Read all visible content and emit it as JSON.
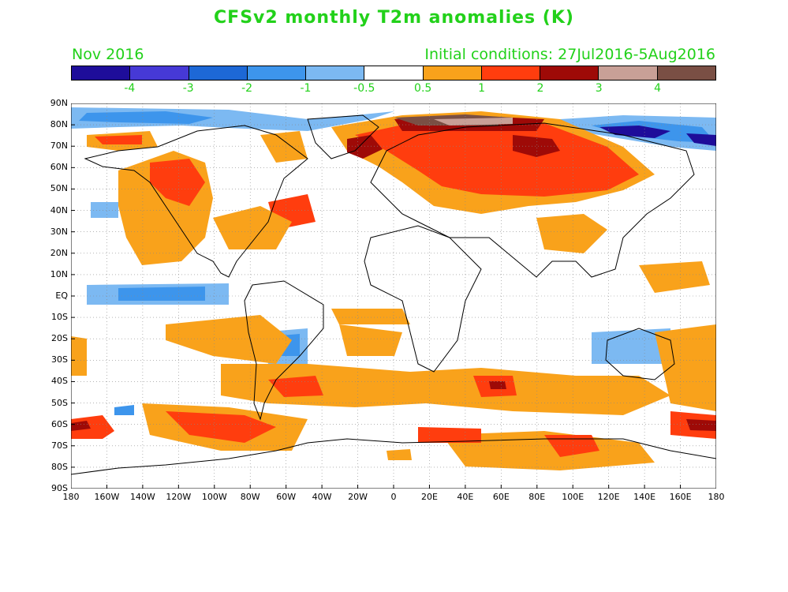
{
  "header": {
    "title": "CFSv2 monthly T2m anomalies (K)",
    "month": "Nov 2016",
    "initial_conditions": "Initial conditions: 27Jul2016-5Aug2016"
  },
  "colorbar": {
    "colors": [
      "#1e0d9a",
      "#4639d6",
      "#1d68d6",
      "#3d95ec",
      "#7cb9f2",
      "#ffffff",
      "#f9a21b",
      "#ff3d0e",
      "#9e0a07",
      "#c8a097",
      "#7a4f44"
    ],
    "labels": [
      "-4",
      "-3",
      "-2",
      "-1",
      "-0.5",
      "0.5",
      "1",
      "2",
      "3",
      "4"
    ]
  },
  "map": {
    "lat_labels": [
      "90N",
      "80N",
      "70N",
      "60N",
      "50N",
      "40N",
      "30N",
      "20N",
      "10N",
      "EQ",
      "10S",
      "20S",
      "30S",
      "40S",
      "50S",
      "60S",
      "70S",
      "80S",
      "90S"
    ],
    "lon_labels": [
      "180",
      "160W",
      "140W",
      "120W",
      "100W",
      "80W",
      "60W",
      "40W",
      "20W",
      "0",
      "20E",
      "40E",
      "60E",
      "80E",
      "100E",
      "120E",
      "140E",
      "160E",
      "180"
    ]
  }
}
